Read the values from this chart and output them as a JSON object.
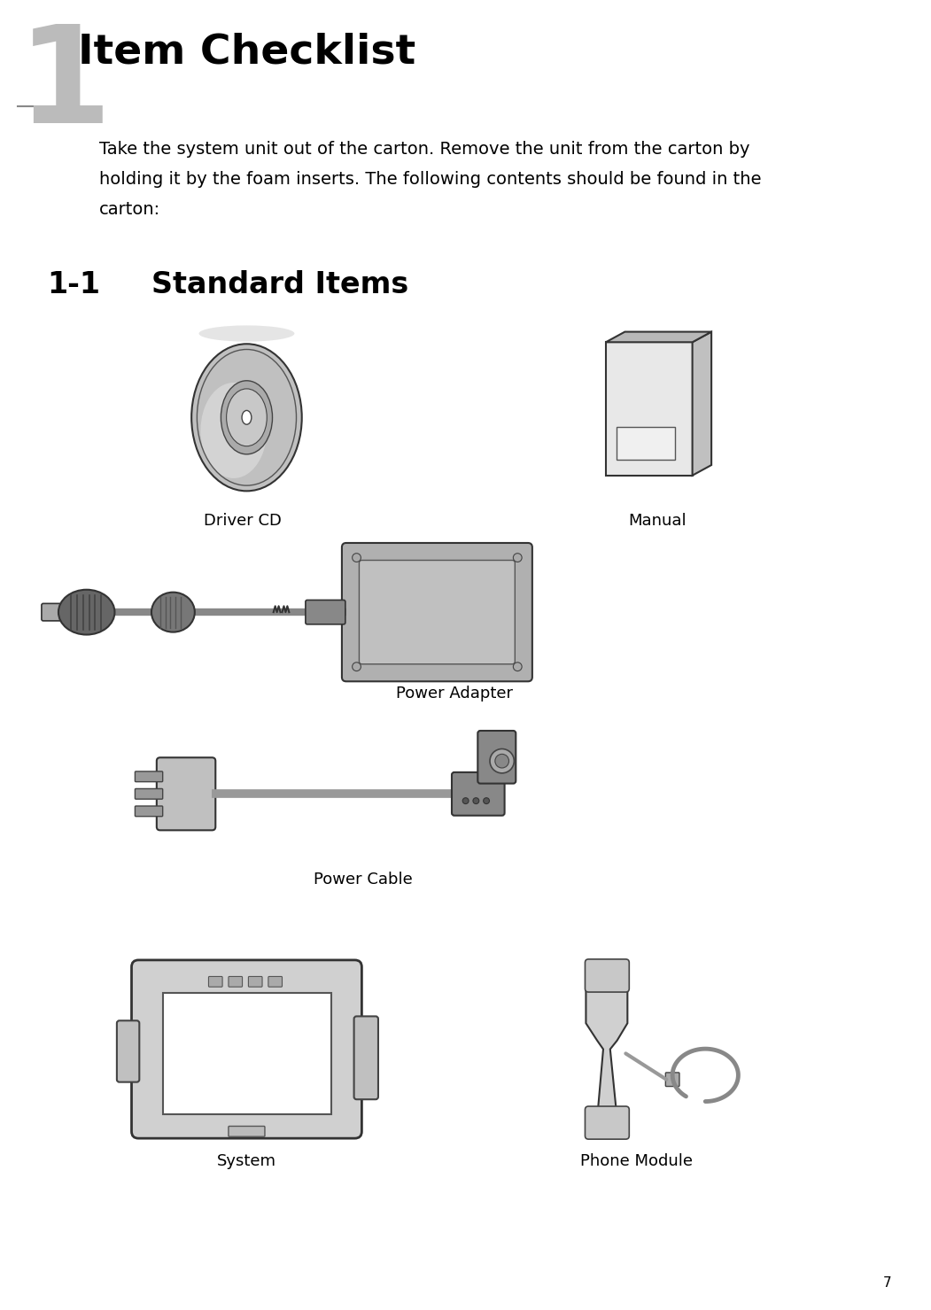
{
  "bg_color": "#ffffff",
  "page_number": "7",
  "chapter_number": "1",
  "chapter_title": "Item Checklist",
  "body_text_lines": [
    "Take the system unit out of the carton. Remove the unit from the carton by",
    "holding it by the foam inserts. The following contents should be found in the",
    "carton:"
  ],
  "section_number": "1-1",
  "section_title": "Standard Items",
  "label_driver_cd": "Driver CD",
  "label_manual": "Manual",
  "label_power_adapter": "Power Adapter",
  "label_power_cable": "Power Cable",
  "label_system": "System",
  "label_phone": "Phone Module",
  "title_font_size": 34,
  "chapter_num_font_size": 110,
  "section_font_size": 24,
  "body_font_size": 14,
  "label_font_size": 13,
  "page_num_font_size": 11,
  "text_color": "#000000",
  "gray_num_color": "#bbbbbb"
}
